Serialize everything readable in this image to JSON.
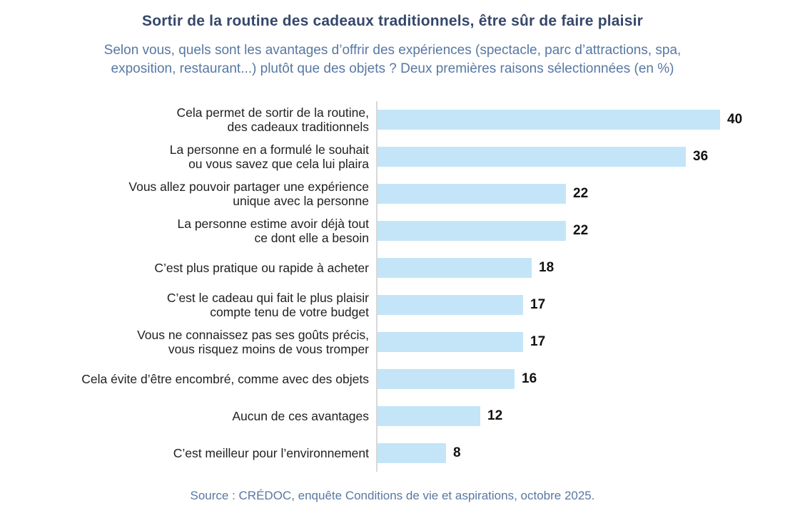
{
  "chart": {
    "title": "Sortir de la routine des cadeaux traditionnels, être sûr de faire plaisir",
    "subtitle": "Selon vous, quels sont les avantages d’offrir des expériences (spectacle, parc d’attractions, spa,\nexposition, restaurant...) plutôt que des objets ? Deux premières raisons sélectionnées (en %)",
    "source": "Source : CRÉDOC, enquête Conditions de vie et aspirations, octobre 2025."
  },
  "chart_data": {
    "type": "bar",
    "orientation": "horizontal",
    "unit": "%",
    "title": "Sortir de la routine des cadeaux traditionnels, être sûr de faire plaisir",
    "subtitle": "Selon vous, quels sont les avantages d’offrir des expériences (spectacle, parc d’attractions, spa, exposition, restaurant...) plutôt que des objets ? Deux premières raisons sélectionnées (en %)",
    "source": "Source : CRÉDOC, enquête Conditions de vie et aspirations, octobre 2025.",
    "categories": [
      "Cela permet de sortir de la routine,\ndes cadeaux traditionnels",
      "La personne en a formulé le souhait\nou vous savez que cela lui plaira",
      "Vous allez pouvoir partager une expérience\nunique avec la personne",
      "La personne estime avoir déjà tout\nce dont elle a besoin",
      "C’est plus pratique ou rapide à acheter",
      "C’est le cadeau qui fait le plus plaisir\ncompte tenu de votre budget",
      "Vous ne connaissez pas ses goûts précis,\nvous risquez moins de vous tromper",
      "Cela évite d’être encombré, comme avec des objets",
      "Aucun de ces avantages",
      "C’est meilleur pour l’environnement"
    ],
    "values": [
      40,
      36,
      22,
      22,
      18,
      17,
      17,
      16,
      12,
      8
    ],
    "xlim": [
      0,
      45
    ],
    "grid": false,
    "legend": "none",
    "data_labels": "end-of-bar"
  },
  "colors": {
    "title": "#35476B",
    "subtitle": "#5878A2",
    "source": "#5878A2",
    "bar": "#C3E5F7",
    "axis": "#D8D8D8",
    "label": "#212121",
    "value": "#111111"
  }
}
